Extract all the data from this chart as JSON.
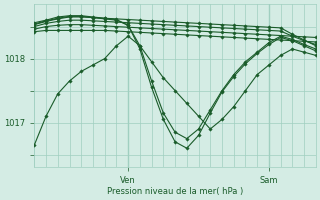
{
  "background_color": "#d4ece4",
  "grid_color": "#a0cfc0",
  "line_color": "#1a5c2a",
  "xlabel": "Pression niveau de la mer( hPa )",
  "xlabel_color": "#1a5c2a",
  "tick_label_color": "#1a5c2a",
  "yticks": [
    1017,
    1018
  ],
  "ylim": [
    1016.3,
    1018.85
  ],
  "xlim": [
    0,
    48
  ],
  "ven_x": 16,
  "sam_x": 40,
  "lines": [
    [
      0,
      1018.42,
      2,
      1018.44,
      4,
      1018.44,
      6,
      1018.44,
      8,
      1018.44,
      10,
      1018.44,
      12,
      1018.44,
      14,
      1018.43,
      16,
      1018.42,
      18,
      1018.41,
      20,
      1018.4,
      22,
      1018.39,
      24,
      1018.38,
      26,
      1018.37,
      28,
      1018.36,
      30,
      1018.35,
      32,
      1018.34,
      34,
      1018.33,
      36,
      1018.32,
      38,
      1018.31,
      40,
      1018.3,
      42,
      1018.29,
      44,
      1018.28,
      46,
      1018.27,
      48,
      1018.26
    ],
    [
      0,
      1018.46,
      2,
      1018.5,
      4,
      1018.52,
      6,
      1018.53,
      8,
      1018.53,
      10,
      1018.52,
      12,
      1018.51,
      14,
      1018.5,
      16,
      1018.49,
      18,
      1018.48,
      20,
      1018.47,
      22,
      1018.46,
      24,
      1018.45,
      26,
      1018.44,
      28,
      1018.43,
      30,
      1018.42,
      32,
      1018.41,
      34,
      1018.4,
      36,
      1018.39,
      38,
      1018.38,
      40,
      1018.37,
      42,
      1018.36,
      44,
      1018.35,
      46,
      1018.34,
      48,
      1018.33
    ],
    [
      0,
      1018.5,
      2,
      1018.55,
      4,
      1018.58,
      6,
      1018.6,
      8,
      1018.6,
      10,
      1018.59,
      12,
      1018.58,
      14,
      1018.57,
      16,
      1018.56,
      18,
      1018.55,
      20,
      1018.54,
      22,
      1018.53,
      24,
      1018.52,
      26,
      1018.51,
      28,
      1018.5,
      30,
      1018.49,
      32,
      1018.48,
      34,
      1018.47,
      36,
      1018.46,
      38,
      1018.45,
      40,
      1018.44,
      42,
      1018.43,
      44,
      1018.35,
      46,
      1018.28,
      48,
      1018.22
    ],
    [
      0,
      1018.53,
      2,
      1018.58,
      4,
      1018.62,
      6,
      1018.65,
      8,
      1018.65,
      10,
      1018.64,
      12,
      1018.63,
      14,
      1018.62,
      16,
      1018.61,
      18,
      1018.6,
      20,
      1018.59,
      22,
      1018.58,
      24,
      1018.57,
      26,
      1018.56,
      28,
      1018.55,
      30,
      1018.54,
      32,
      1018.53,
      34,
      1018.52,
      36,
      1018.51,
      38,
      1018.5,
      40,
      1018.49,
      42,
      1018.48,
      44,
      1018.38,
      46,
      1018.29,
      48,
      1018.2
    ],
    [
      0,
      1016.65,
      2,
      1017.1,
      4,
      1017.45,
      6,
      1017.65,
      8,
      1017.8,
      10,
      1017.9,
      12,
      1018.0,
      14,
      1018.2,
      16,
      1018.35,
      18,
      1018.2,
      20,
      1017.95,
      22,
      1017.7,
      24,
      1017.5,
      26,
      1017.3,
      28,
      1017.1,
      30,
      1016.9,
      32,
      1017.05,
      34,
      1017.25,
      36,
      1017.5,
      38,
      1017.75,
      40,
      1017.9,
      42,
      1018.05,
      44,
      1018.15,
      46,
      1018.1,
      48,
      1018.05
    ],
    [
      0,
      1018.54,
      2,
      1018.59,
      4,
      1018.63,
      6,
      1018.66,
      8,
      1018.66,
      10,
      1018.64,
      12,
      1018.62,
      14,
      1018.6,
      16,
      1018.52,
      18,
      1018.2,
      20,
      1017.65,
      22,
      1017.15,
      24,
      1016.85,
      26,
      1016.75,
      28,
      1016.9,
      30,
      1017.2,
      32,
      1017.5,
      34,
      1017.75,
      36,
      1017.95,
      38,
      1018.1,
      40,
      1018.25,
      42,
      1018.35,
      44,
      1018.3,
      46,
      1018.22,
      48,
      1018.15
    ],
    [
      0,
      1018.56,
      2,
      1018.6,
      4,
      1018.65,
      6,
      1018.67,
      8,
      1018.67,
      10,
      1018.65,
      12,
      1018.63,
      14,
      1018.61,
      16,
      1018.52,
      18,
      1018.15,
      20,
      1017.55,
      22,
      1017.05,
      24,
      1016.7,
      26,
      1016.6,
      28,
      1016.8,
      30,
      1017.15,
      32,
      1017.48,
      34,
      1017.72,
      36,
      1017.92,
      38,
      1018.08,
      40,
      1018.22,
      42,
      1018.33,
      44,
      1018.28,
      46,
      1018.2,
      48,
      1018.12
    ]
  ]
}
